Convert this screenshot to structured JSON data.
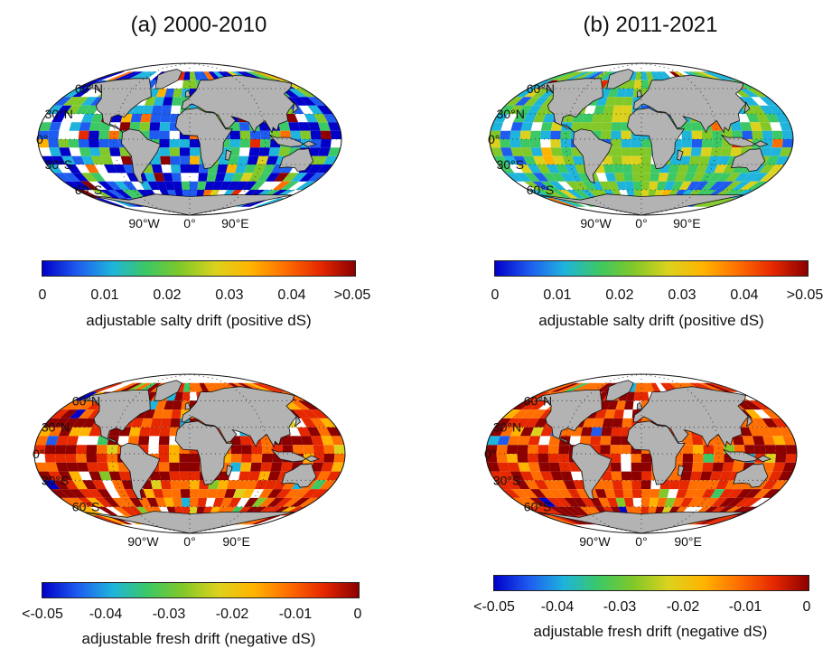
{
  "titles": {
    "left": "(a) 2000-2010",
    "right": "(b) 2011-2021"
  },
  "lat_labels": [
    "60°N",
    "30°N",
    "0°",
    "30°S",
    "60°S"
  ],
  "lon_labels": [
    "90°W",
    "0°",
    "90°E"
  ],
  "colorbars": {
    "salty": {
      "ticks": [
        "0",
        "0.01",
        "0.02",
        "0.03",
        "0.04",
        ">0.05"
      ],
      "label": "adjustable salty drift (positive dS)"
    },
    "fresh": {
      "ticks": [
        "<-0.05",
        "-0.04",
        "-0.03",
        "-0.02",
        "-0.01",
        "0"
      ],
      "label": "adjustable fresh drift (negative dS)"
    }
  },
  "colors": {
    "land": "#b3b3b3",
    "coast": "#111111",
    "missing": "#ffffff",
    "jet": [
      "#0000c8",
      "#1e5cf0",
      "#1eb4dc",
      "#3cc864",
      "#82c828",
      "#dcd21e",
      "#ffb400",
      "#ff6e00",
      "#e62800",
      "#8c0000"
    ]
  },
  "chart_data": [
    {
      "type": "heatmap",
      "title": "(a) 2000-2010",
      "colorbar_label": "adjustable salty drift (positive dS)",
      "colorbar_range": [
        0,
        0.05
      ],
      "field": "salty_2000_2010",
      "dominant_level": 0.008
    },
    {
      "type": "heatmap",
      "title": "(b) 2011-2021",
      "colorbar_label": "adjustable salty drift (positive dS)",
      "colorbar_range": [
        0,
        0.05
      ],
      "field": "salty_2011_2021",
      "dominant_level": 0.018
    },
    {
      "type": "heatmap",
      "title": "",
      "colorbar_label": "adjustable fresh drift (negative dS)",
      "colorbar_range": [
        -0.05,
        0
      ],
      "field": "fresh_2000_2010",
      "dominant_level": -0.008
    },
    {
      "type": "heatmap",
      "title": "",
      "colorbar_label": "adjustable fresh drift (negative dS)",
      "colorbar_range": [
        -0.05,
        0
      ],
      "field": "fresh_2011_2021",
      "dominant_level": -0.008
    }
  ]
}
